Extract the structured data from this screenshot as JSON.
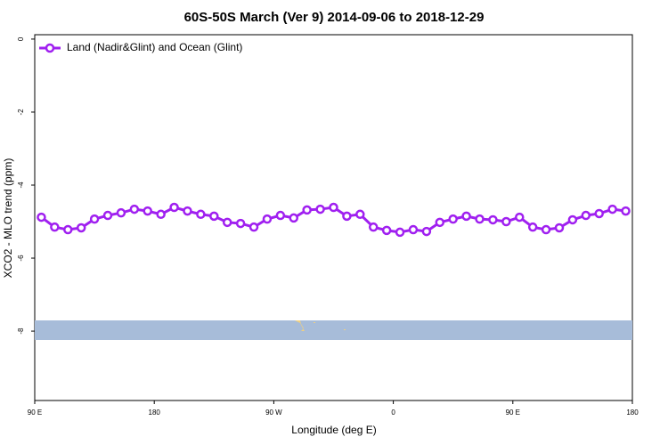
{
  "chart_data": {
    "type": "line",
    "title": "60S-50S March (Ver 9)   2014-09-06 to 2018-12-29",
    "x_label": "Longitude (deg E)",
    "y_label": "XCO2 - MLO trend (ppm)",
    "x": [
      95,
      105,
      115,
      125,
      135,
      145,
      155,
      165,
      175,
      185,
      195,
      205,
      215,
      225,
      235,
      245,
      255,
      265,
      275,
      285,
      295,
      305,
      315,
      325,
      335,
      345,
      355,
      365,
      375,
      385,
      395,
      405,
      415,
      425,
      435,
      445,
      455,
      465,
      475,
      485,
      495,
      505,
      515,
      525,
      535
    ],
    "series": [
      {
        "name": "Land (Nadir&Glint) and Ocean (Glint)",
        "color": "#a020f0",
        "values": [
          -4.88,
          -5.15,
          -5.22,
          -5.17,
          -4.93,
          -4.83,
          -4.76,
          -4.66,
          -4.71,
          -4.8,
          -4.61,
          -4.71,
          -4.8,
          -4.85,
          -5.02,
          -5.05,
          -5.15,
          -4.93,
          -4.83,
          -4.9,
          -4.68,
          -4.66,
          -4.61,
          -4.85,
          -4.8,
          -5.15,
          -5.24,
          -5.29,
          -5.22,
          -5.27,
          -5.02,
          -4.93,
          -4.85,
          -4.93,
          -4.95,
          -5.0,
          -4.88,
          -5.15,
          -5.22,
          -5.17,
          -4.95,
          -4.83,
          -4.78,
          -4.66,
          -4.71
        ]
      }
    ],
    "xlim": [
      90,
      540
    ],
    "xticks": [
      {
        "value": 90,
        "label": "90 E"
      },
      180,
      {
        "value": 270,
        "label": "90 W"
      },
      {
        "value": 360,
        "label": "0"
      },
      {
        "value": 450,
        "label": "90 E"
      },
      {
        "value": 540,
        "label": "180"
      }
    ],
    "ylim": [
      -9.9,
      0.12
    ],
    "yticks": [
      0,
      -2,
      -4,
      -6,
      -8
    ],
    "legend": "top-left"
  }
}
